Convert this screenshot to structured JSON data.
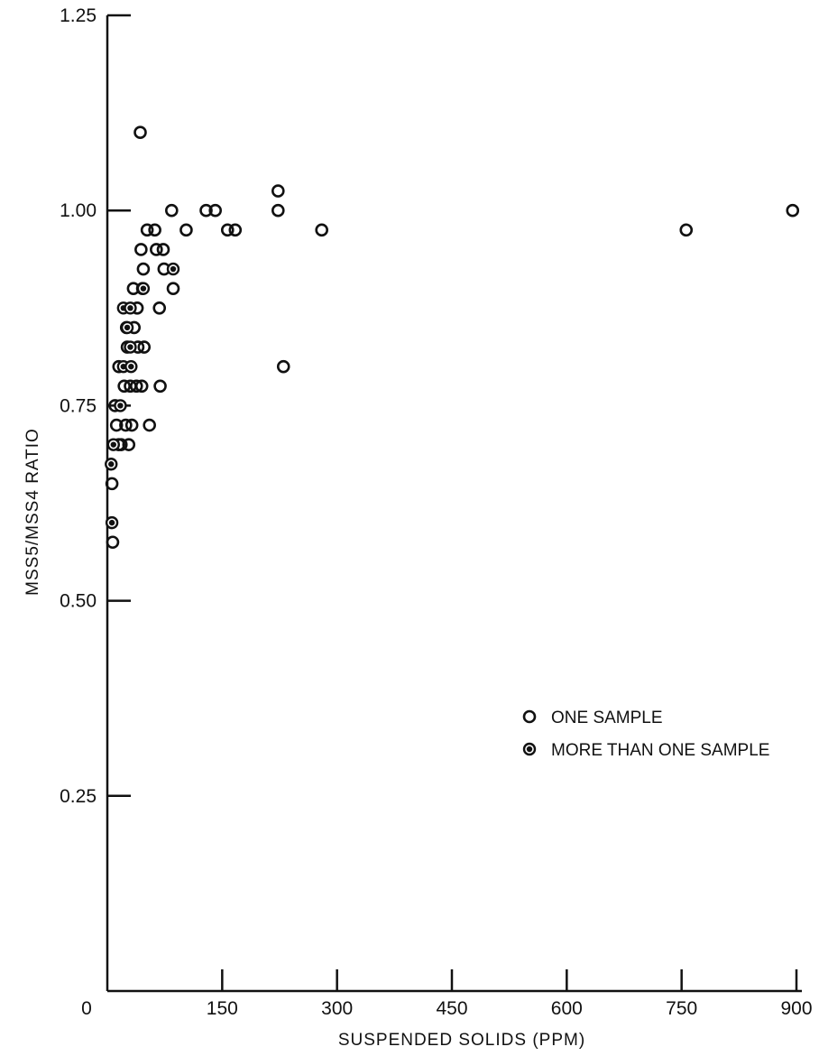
{
  "chart_data": {
    "type": "scatter",
    "title": "",
    "xlabel": "SUSPENDED SOLIDS (PPM)",
    "ylabel": "MSS5/MSS4 RATIO",
    "xlim": [
      0,
      900
    ],
    "ylim": [
      0,
      1.25
    ],
    "x_ticks": [
      0,
      150,
      300,
      450,
      600,
      750,
      900
    ],
    "x_tick_labels": [
      "0",
      "150",
      "300",
      "450",
      "600",
      "750",
      "900"
    ],
    "y_ticks": [
      0.25,
      0.5,
      0.75,
      1.0,
      1.25
    ],
    "y_tick_labels": [
      "0.25",
      "0.50",
      "0.75",
      "1.00",
      "1.25"
    ],
    "grid": false,
    "legend_position": "right",
    "series": [
      {
        "name": "ONE SAMPLE",
        "marker": "open-circle",
        "points": [
          [
            43,
            1.1
          ],
          [
            84,
            1.0
          ],
          [
            129,
            1.0
          ],
          [
            141,
            1.0
          ],
          [
            157,
            0.975
          ],
          [
            167,
            0.975
          ],
          [
            223,
            1.025
          ],
          [
            223,
            1.0
          ],
          [
            230,
            0.8
          ],
          [
            280,
            0.975
          ],
          [
            756,
            0.975
          ],
          [
            895,
            1.0
          ],
          [
            52,
            0.975
          ],
          [
            62,
            0.975
          ],
          [
            103,
            0.975
          ],
          [
            44,
            0.95
          ],
          [
            64,
            0.95
          ],
          [
            74,
            0.925
          ],
          [
            73,
            0.95
          ],
          [
            47,
            0.925
          ],
          [
            34,
            0.9
          ],
          [
            46,
            0.9
          ],
          [
            86,
            0.9
          ],
          [
            68,
            0.875
          ],
          [
            39,
            0.875
          ],
          [
            25,
            0.85
          ],
          [
            35,
            0.85
          ],
          [
            26,
            0.825
          ],
          [
            40,
            0.825
          ],
          [
            48,
            0.825
          ],
          [
            15,
            0.8
          ],
          [
            22,
            0.775
          ],
          [
            30,
            0.775
          ],
          [
            38,
            0.775
          ],
          [
            45,
            0.775
          ],
          [
            69,
            0.775
          ],
          [
            10,
            0.75
          ],
          [
            12,
            0.725
          ],
          [
            24,
            0.725
          ],
          [
            32,
            0.725
          ],
          [
            55,
            0.725
          ],
          [
            18,
            0.7
          ],
          [
            28,
            0.7
          ],
          [
            15,
            0.7
          ],
          [
            6,
            0.65
          ],
          [
            7,
            0.575
          ]
        ]
      },
      {
        "name": "MORE THAN ONE SAMPLE",
        "marker": "half-filled-circle",
        "points": [
          [
            47,
            0.9
          ],
          [
            86,
            0.925
          ],
          [
            21,
            0.875
          ],
          [
            30,
            0.875
          ],
          [
            26,
            0.85
          ],
          [
            30,
            0.825
          ],
          [
            21,
            0.8
          ],
          [
            31,
            0.8
          ],
          [
            17,
            0.75
          ],
          [
            8,
            0.7
          ],
          [
            5,
            0.675
          ],
          [
            6,
            0.6
          ]
        ]
      }
    ]
  }
}
